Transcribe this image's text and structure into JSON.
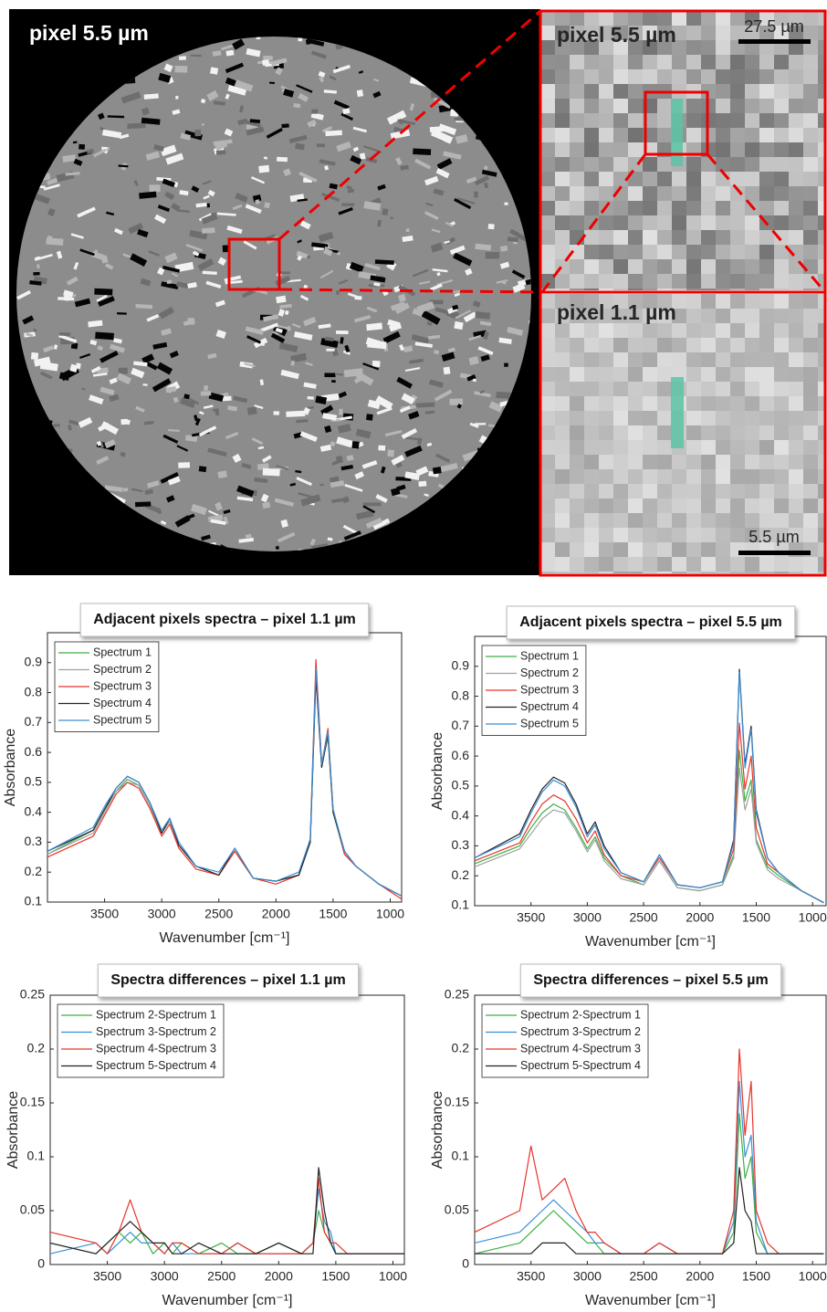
{
  "image_panel": {
    "label_main": "pixel 5.5 µm",
    "label_zoom_top": "pixel 5.5 µm",
    "scale_top": "27.5 µm",
    "label_zoom_bottom": "pixel 1.1 µm",
    "scale_bottom": "5.5 µm"
  },
  "chart_data": [
    {
      "type": "line",
      "title": "Adjacent pixels spectra – pixel 1.1 µm",
      "xlabel": "Wavenumber [cm⁻¹]",
      "ylabel": "Absorbance",
      "legend": "upper left",
      "x": [
        4000,
        3600,
        3500,
        3400,
        3300,
        3200,
        3100,
        3000,
        2930,
        2850,
        2700,
        2500,
        2360,
        2200,
        2000,
        1800,
        1700,
        1650,
        1600,
        1545,
        1500,
        1400,
        1300,
        1100,
        900
      ],
      "xlim": [
        4000,
        900
      ],
      "xticks": [
        3500,
        3000,
        2500,
        2000,
        1500,
        1000
      ],
      "ylim": [
        0.1,
        1.0
      ],
      "yticks": [
        0.1,
        0.2,
        0.3,
        0.4,
        0.5,
        0.6,
        0.7,
        0.8,
        0.9
      ],
      "series": [
        {
          "name": "Spectrum 1",
          "color": "#3cb043",
          "values": [
            0.26,
            0.34,
            0.41,
            0.47,
            0.51,
            0.49,
            0.42,
            0.33,
            0.37,
            0.29,
            0.22,
            0.19,
            0.27,
            0.18,
            0.17,
            0.19,
            0.31,
            0.86,
            0.56,
            0.65,
            0.4,
            0.26,
            0.22,
            0.16,
            0.12
          ]
        },
        {
          "name": "Spectrum 2",
          "color": "#a0a0a0",
          "values": [
            0.26,
            0.33,
            0.4,
            0.47,
            0.5,
            0.49,
            0.42,
            0.33,
            0.37,
            0.29,
            0.22,
            0.19,
            0.27,
            0.18,
            0.17,
            0.19,
            0.3,
            0.87,
            0.55,
            0.66,
            0.4,
            0.26,
            0.22,
            0.16,
            0.12
          ]
        },
        {
          "name": "Spectrum 3",
          "color": "#e8342a",
          "values": [
            0.25,
            0.32,
            0.39,
            0.46,
            0.5,
            0.48,
            0.41,
            0.32,
            0.36,
            0.28,
            0.21,
            0.19,
            0.27,
            0.18,
            0.16,
            0.19,
            0.31,
            0.91,
            0.56,
            0.68,
            0.41,
            0.26,
            0.22,
            0.16,
            0.11
          ]
        },
        {
          "name": "Spectrum 4",
          "color": "#222222",
          "values": [
            0.27,
            0.34,
            0.41,
            0.48,
            0.52,
            0.5,
            0.43,
            0.33,
            0.38,
            0.29,
            0.22,
            0.19,
            0.28,
            0.18,
            0.17,
            0.19,
            0.3,
            0.85,
            0.55,
            0.66,
            0.4,
            0.27,
            0.22,
            0.16,
            0.12
          ]
        },
        {
          "name": "Spectrum 5",
          "color": "#3a8fd6",
          "values": [
            0.27,
            0.35,
            0.42,
            0.48,
            0.52,
            0.5,
            0.43,
            0.34,
            0.38,
            0.3,
            0.22,
            0.2,
            0.28,
            0.18,
            0.17,
            0.2,
            0.31,
            0.88,
            0.56,
            0.67,
            0.41,
            0.27,
            0.22,
            0.16,
            0.12
          ]
        }
      ]
    },
    {
      "type": "line",
      "title": "Adjacent pixels spectra – pixel 5.5 µm",
      "xlabel": "Wavenumber [cm⁻¹]",
      "ylabel": "Absorbance",
      "legend": "upper left",
      "x": [
        4000,
        3600,
        3500,
        3400,
        3300,
        3200,
        3100,
        3000,
        2930,
        2850,
        2700,
        2500,
        2360,
        2200,
        2000,
        1800,
        1700,
        1650,
        1600,
        1545,
        1500,
        1400,
        1300,
        1100,
        900
      ],
      "xlim": [
        4000,
        880
      ],
      "xticks": [
        3500,
        3000,
        2500,
        2000,
        1500,
        1000
      ],
      "ylim": [
        0.1,
        1.0
      ],
      "yticks": [
        0.1,
        0.2,
        0.3,
        0.4,
        0.5,
        0.6,
        0.7,
        0.8,
        0.9
      ],
      "series": [
        {
          "name": "Spectrum 1",
          "color": "#3cb043",
          "values": [
            0.24,
            0.3,
            0.36,
            0.41,
            0.44,
            0.42,
            0.36,
            0.29,
            0.33,
            0.26,
            0.2,
            0.17,
            0.25,
            0.16,
            0.15,
            0.17,
            0.27,
            0.62,
            0.45,
            0.52,
            0.32,
            0.23,
            0.2,
            0.15,
            0.11
          ]
        },
        {
          "name": "Spectrum 2",
          "color": "#a0a0a0",
          "values": [
            0.23,
            0.29,
            0.34,
            0.39,
            0.42,
            0.41,
            0.35,
            0.28,
            0.32,
            0.25,
            0.19,
            0.17,
            0.25,
            0.16,
            0.15,
            0.17,
            0.26,
            0.56,
            0.42,
            0.49,
            0.31,
            0.22,
            0.19,
            0.15,
            0.11
          ]
        },
        {
          "name": "Spectrum 3",
          "color": "#e8342a",
          "values": [
            0.25,
            0.31,
            0.38,
            0.44,
            0.47,
            0.45,
            0.39,
            0.31,
            0.35,
            0.27,
            0.2,
            0.18,
            0.26,
            0.17,
            0.16,
            0.18,
            0.29,
            0.71,
            0.49,
            0.6,
            0.36,
            0.24,
            0.21,
            0.15,
            0.11
          ]
        },
        {
          "name": "Spectrum 4",
          "color": "#222222",
          "values": [
            0.26,
            0.34,
            0.42,
            0.49,
            0.53,
            0.51,
            0.44,
            0.34,
            0.38,
            0.3,
            0.21,
            0.18,
            0.27,
            0.17,
            0.16,
            0.18,
            0.32,
            0.89,
            0.57,
            0.7,
            0.42,
            0.26,
            0.21,
            0.15,
            0.11
          ]
        },
        {
          "name": "Spectrum 5",
          "color": "#3a8fd6",
          "values": [
            0.26,
            0.33,
            0.41,
            0.48,
            0.52,
            0.5,
            0.43,
            0.33,
            0.37,
            0.29,
            0.21,
            0.18,
            0.27,
            0.17,
            0.16,
            0.18,
            0.31,
            0.88,
            0.56,
            0.69,
            0.41,
            0.26,
            0.21,
            0.15,
            0.11
          ]
        }
      ]
    },
    {
      "type": "line",
      "title": "Spectra differences – pixel 1.1 µm",
      "xlabel": "Wavenumber [cm⁻¹]",
      "ylabel": "Absorbance",
      "legend": "upper left",
      "x": [
        4000,
        3600,
        3500,
        3400,
        3300,
        3200,
        3100,
        3000,
        2930,
        2850,
        2700,
        2500,
        2360,
        2200,
        2000,
        1800,
        1700,
        1650,
        1600,
        1545,
        1500,
        1400,
        1300,
        1100,
        900
      ],
      "xlim": [
        4000,
        900
      ],
      "xticks": [
        3500,
        3000,
        2500,
        2000,
        1500,
        1000
      ],
      "ylim": [
        0,
        0.25
      ],
      "yticks": [
        0,
        0.05,
        0.1,
        0.15,
        0.2,
        0.25
      ],
      "series": [
        {
          "name": "Spectrum 2-Spectrum 1",
          "color": "#3cb043",
          "values": [
            0.02,
            0.01,
            0.02,
            0.03,
            0.02,
            0.03,
            0.01,
            0.02,
            0.01,
            0.02,
            0.01,
            0.02,
            0.01,
            0.01,
            0.02,
            0.01,
            0.02,
            0.05,
            0.03,
            0.02,
            0.01,
            0.01,
            0.01,
            0.01,
            0.01
          ]
        },
        {
          "name": "Spectrum 3-Spectrum 2",
          "color": "#3a8fd6",
          "values": [
            0.01,
            0.02,
            0.01,
            0.02,
            0.03,
            0.02,
            0.02,
            0.01,
            0.02,
            0.01,
            0.01,
            0.01,
            0.02,
            0.01,
            0.01,
            0.01,
            0.02,
            0.07,
            0.04,
            0.03,
            0.01,
            0.01,
            0.01,
            0.01,
            0.01
          ]
        },
        {
          "name": "Spectrum 4-Spectrum 3",
          "color": "#e8342a",
          "values": [
            0.03,
            0.02,
            0.01,
            0.03,
            0.06,
            0.03,
            0.02,
            0.01,
            0.02,
            0.02,
            0.01,
            0.01,
            0.02,
            0.01,
            0.01,
            0.01,
            0.02,
            0.08,
            0.03,
            0.02,
            0.02,
            0.01,
            0.01,
            0.01,
            0.01
          ]
        },
        {
          "name": "Spectrum 5-Spectrum 4",
          "color": "#222222",
          "values": [
            0.02,
            0.01,
            0.02,
            0.03,
            0.04,
            0.03,
            0.02,
            0.02,
            0.01,
            0.01,
            0.02,
            0.01,
            0.01,
            0.01,
            0.02,
            0.01,
            0.01,
            0.09,
            0.05,
            0.02,
            0.01,
            0.01,
            0.01,
            0.01,
            0.01
          ]
        }
      ]
    },
    {
      "type": "line",
      "title": "Spectra differences – pixel 5.5 µm",
      "xlabel": "Wavenumber [cm⁻¹]",
      "ylabel": "Absorbance",
      "legend": "upper left",
      "x": [
        4000,
        3600,
        3500,
        3400,
        3300,
        3200,
        3100,
        3000,
        2930,
        2850,
        2700,
        2500,
        2360,
        2200,
        2000,
        1800,
        1700,
        1650,
        1600,
        1545,
        1500,
        1400,
        1300,
        1100,
        900
      ],
      "xlim": [
        4000,
        880
      ],
      "xticks": [
        3500,
        3000,
        2500,
        2000,
        1500,
        1000
      ],
      "ylim": [
        0,
        0.25
      ],
      "yticks": [
        0,
        0.05,
        0.1,
        0.15,
        0.2,
        0.25
      ],
      "series": [
        {
          "name": "Spectrum 2-Spectrum 1",
          "color": "#3cb043",
          "values": [
            0.01,
            0.02,
            0.03,
            0.04,
            0.05,
            0.04,
            0.03,
            0.02,
            0.02,
            0.01,
            0.01,
            0.01,
            0.01,
            0.01,
            0.01,
            0.01,
            0.03,
            0.14,
            0.08,
            0.1,
            0.03,
            0.01,
            0.01,
            0.01,
            0.01
          ]
        },
        {
          "name": "Spectrum 3-Spectrum 2",
          "color": "#3a8fd6",
          "values": [
            0.02,
            0.03,
            0.04,
            0.05,
            0.06,
            0.05,
            0.04,
            0.03,
            0.02,
            0.02,
            0.01,
            0.01,
            0.02,
            0.01,
            0.01,
            0.01,
            0.04,
            0.17,
            0.1,
            0.12,
            0.04,
            0.01,
            0.01,
            0.01,
            0.01
          ]
        },
        {
          "name": "Spectrum 4-Spectrum 3",
          "color": "#e8342a",
          "values": [
            0.03,
            0.05,
            0.11,
            0.06,
            0.07,
            0.08,
            0.05,
            0.03,
            0.03,
            0.02,
            0.01,
            0.01,
            0.02,
            0.01,
            0.01,
            0.01,
            0.05,
            0.2,
            0.12,
            0.17,
            0.05,
            0.02,
            0.01,
            0.01,
            0.01
          ]
        },
        {
          "name": "Spectrum 5-Spectrum 4",
          "color": "#222222",
          "values": [
            0.01,
            0.01,
            0.01,
            0.02,
            0.02,
            0.02,
            0.01,
            0.01,
            0.01,
            0.01,
            0.01,
            0.01,
            0.01,
            0.01,
            0.01,
            0.01,
            0.02,
            0.09,
            0.05,
            0.04,
            0.01,
            0.01,
            0.01,
            0.01,
            0.01
          ]
        }
      ]
    }
  ]
}
